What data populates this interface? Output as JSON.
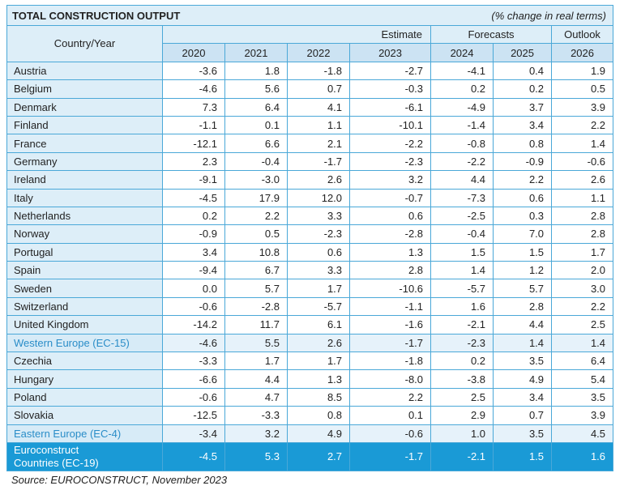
{
  "title": "TOTAL CONSTRUCTION OUTPUT",
  "subtitle": "(% change in real terms)",
  "header": {
    "country_year": "Country/Year",
    "estimate": "Estimate",
    "forecasts": "Forecasts",
    "outlook": "Outlook",
    "years": [
      "2020",
      "2021",
      "2022",
      "2023",
      "2024",
      "2025",
      "2026"
    ]
  },
  "rows": [
    {
      "name": "Austria",
      "values": [
        "-3.6",
        "1.8",
        "-1.8",
        "-2.7",
        "-4.1",
        "0.4",
        "1.9"
      ]
    },
    {
      "name": "Belgium",
      "values": [
        "-4.6",
        "5.6",
        "0.7",
        "-0.3",
        "0.2",
        "0.2",
        "0.5"
      ]
    },
    {
      "name": "Denmark",
      "values": [
        "7.3",
        "6.4",
        "4.1",
        "-6.1",
        "-4.9",
        "3.7",
        "3.9"
      ]
    },
    {
      "name": "Finland",
      "values": [
        "-1.1",
        "0.1",
        "1.1",
        "-10.1",
        "-1.4",
        "3.4",
        "2.2"
      ]
    },
    {
      "name": "France",
      "values": [
        "-12.1",
        "6.6",
        "2.1",
        "-2.2",
        "-0.8",
        "0.8",
        "1.4"
      ]
    },
    {
      "name": "Germany",
      "values": [
        "2.3",
        "-0.4",
        "-1.7",
        "-2.3",
        "-2.2",
        "-0.9",
        "-0.6"
      ]
    },
    {
      "name": "Ireland",
      "values": [
        "-9.1",
        "-3.0",
        "2.6",
        "3.2",
        "4.4",
        "2.2",
        "2.6"
      ]
    },
    {
      "name": "Italy",
      "values": [
        "-4.5",
        "17.9",
        "12.0",
        "-0.7",
        "-7.3",
        "0.6",
        "1.1"
      ]
    },
    {
      "name": "Netherlands",
      "values": [
        "0.2",
        "2.2",
        "3.3",
        "0.6",
        "-2.5",
        "0.3",
        "2.8"
      ]
    },
    {
      "name": "Norway",
      "values": [
        "-0.9",
        "0.5",
        "-2.3",
        "-2.8",
        "-0.4",
        "7.0",
        "2.8"
      ]
    },
    {
      "name": "Portugal",
      "values": [
        "3.4",
        "10.8",
        "0.6",
        "1.3",
        "1.5",
        "1.5",
        "1.7"
      ]
    },
    {
      "name": "Spain",
      "values": [
        "-9.4",
        "6.7",
        "3.3",
        "2.8",
        "1.4",
        "1.2",
        "2.0"
      ]
    },
    {
      "name": "Sweden",
      "values": [
        "0.0",
        "5.7",
        "1.7",
        "-10.6",
        "-5.7",
        "5.7",
        "3.0"
      ]
    },
    {
      "name": "Switzerland",
      "values": [
        "-0.6",
        "-2.8",
        "-5.7",
        "-1.1",
        "1.6",
        "2.8",
        "2.2"
      ]
    },
    {
      "name": "United Kingdom",
      "values": [
        "-14.2",
        "11.7",
        "6.1",
        "-1.6",
        "-2.1",
        "4.4",
        "2.5"
      ]
    },
    {
      "name": "Western Europe (EC-15)",
      "values": [
        "-4.6",
        "5.5",
        "2.6",
        "-1.7",
        "-2.3",
        "1.4",
        "1.4"
      ],
      "aggregate": true
    },
    {
      "name": "Czechia",
      "values": [
        "-3.3",
        "1.7",
        "1.7",
        "-1.8",
        "0.2",
        "3.5",
        "6.4"
      ]
    },
    {
      "name": "Hungary",
      "values": [
        "-6.6",
        "4.4",
        "1.3",
        "-8.0",
        "-3.8",
        "4.9",
        "5.4"
      ]
    },
    {
      "name": "Poland",
      "values": [
        "-0.6",
        "4.7",
        "8.5",
        "2.2",
        "2.5",
        "3.4",
        "3.5"
      ]
    },
    {
      "name": "Slovakia",
      "values": [
        "-12.5",
        "-3.3",
        "0.8",
        "0.1",
        "2.9",
        "0.7",
        "3.9"
      ]
    },
    {
      "name": "Eastern Europe (EC-4)",
      "values": [
        "-3.4",
        "3.2",
        "4.9",
        "-0.6",
        "1.0",
        "3.5",
        "4.5"
      ],
      "aggregate": true
    }
  ],
  "total": {
    "name_line1": "Euroconstruct",
    "name_line2": "Countries (EC-19)",
    "values": [
      "-4.5",
      "5.3",
      "2.7",
      "-1.7",
      "-2.1",
      "1.5",
      "1.6"
    ]
  },
  "source": "Source: EUROCONSTRUCT, November 2023",
  "colors": {
    "accent": "#1a9ad6",
    "border": "#4aa8d8",
    "header_bg": "#ddeef8",
    "aggregate_text": "#2a8dc8"
  }
}
